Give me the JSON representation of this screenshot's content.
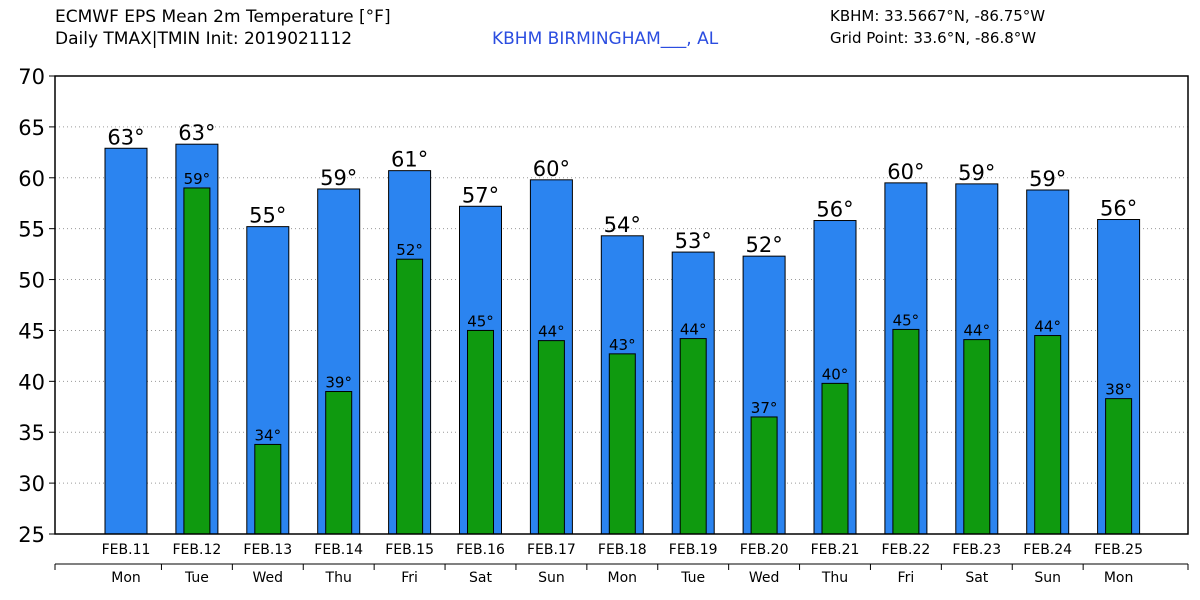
{
  "header": {
    "title_line1": "ECMWF EPS Mean 2m Temperature [°F]",
    "title_line2": "Daily TMAX|TMIN Init: 2019021112",
    "station": "KBHM BIRMINGHAM___, AL",
    "coord_line1": "KBHM: 33.5667°N, -86.75°W",
    "coord_line2": "Grid Point: 33.6°N, -86.8°W"
  },
  "colors": {
    "max_bar": "#2b84f0",
    "min_bar": "#0f9a0f",
    "station_text": "#2b4de0"
  },
  "chart_data": {
    "type": "bar",
    "title": "ECMWF EPS Mean 2m Temperature [°F]",
    "subtitle": "Daily TMAX|TMIN Init: 2019021112",
    "categories": [
      "FEB.11",
      "FEB.12",
      "FEB.13",
      "FEB.14",
      "FEB.15",
      "FEB.16",
      "FEB.17",
      "FEB.18",
      "FEB.19",
      "FEB.20",
      "FEB.21",
      "FEB.22",
      "FEB.23",
      "FEB.24",
      "FEB.25"
    ],
    "weekdays": [
      "Mon",
      "Tue",
      "Wed",
      "Thu",
      "Fri",
      "Sat",
      "Sun",
      "Mon",
      "Tue",
      "Wed",
      "Thu",
      "Fri",
      "Sat",
      "Sun",
      "Mon"
    ],
    "series": [
      {
        "name": "TMAX",
        "values": [
          62.9,
          63.3,
          55.2,
          58.9,
          60.7,
          57.2,
          59.8,
          54.3,
          52.7,
          52.3,
          55.8,
          59.5,
          59.4,
          58.8,
          55.9
        ],
        "labels": [
          "63°",
          "63°",
          "55°",
          "59°",
          "61°",
          "57°",
          "60°",
          "54°",
          "53°",
          "52°",
          "56°",
          "60°",
          "59°",
          "59°",
          "56°"
        ]
      },
      {
        "name": "TMIN",
        "values": [
          null,
          59.0,
          33.8,
          39.0,
          52.0,
          45.0,
          44.0,
          42.7,
          44.2,
          36.5,
          39.8,
          45.1,
          44.1,
          44.5,
          38.3
        ],
        "labels": [
          "",
          "59°",
          "34°",
          "39°",
          "52°",
          "45°",
          "44°",
          "43°",
          "44°",
          "37°",
          "40°",
          "45°",
          "44°",
          "44°",
          "38°"
        ]
      }
    ],
    "ylim": [
      25,
      70
    ],
    "yticks": [
      25,
      30,
      35,
      40,
      45,
      50,
      55,
      60,
      65,
      70
    ],
    "grid": true
  }
}
